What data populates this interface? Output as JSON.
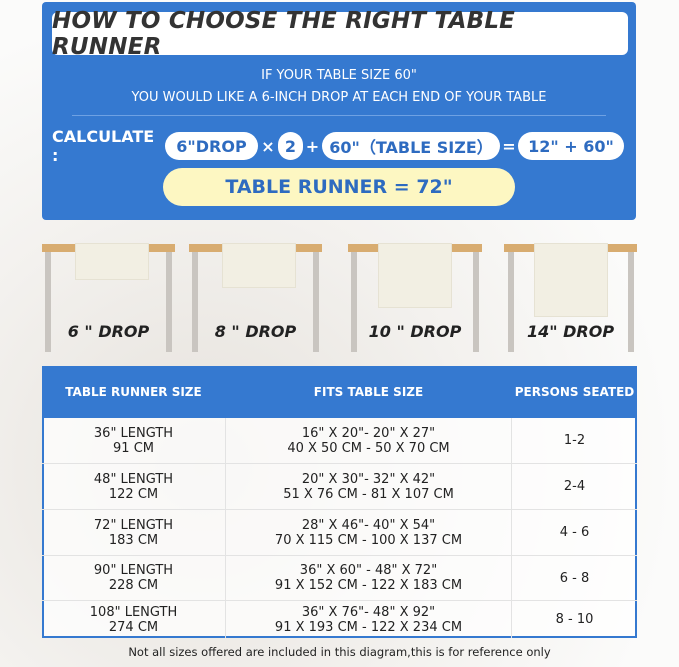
{
  "header": {
    "title": "HOW TO CHOOSE THE RIGHT TABLE RUNNER",
    "line1": "IF YOUR TABLE SIZE 60\"",
    "line2": "YOU WOULD LIKE A 6-INCH DROP AT EACH END OF YOUR TABLE"
  },
  "calc": {
    "label": "CALCULATE :",
    "drop": "6\"DROP",
    "times": "×",
    "factor": "2",
    "plus": "+",
    "table": "60\"（TABLE SIZE）",
    "equals": "=",
    "sum": "12\" + 60\"",
    "result": "TABLE RUNNER = 72\""
  },
  "drops": [
    "6 \" DROP",
    "8 \" DROP",
    "10 \" DROP",
    "14\" DROP"
  ],
  "table": {
    "headers": [
      "TABLE RUNNER SIZE",
      "FITS TABLE SIZE",
      "PERSONS SEATED"
    ],
    "rows": [
      {
        "size": "36\" LENGTH",
        "cm": "91 CM",
        "fit_in": "16\" X 20\"- 20\" X 27\"",
        "fit_cm": "40 X 50 CM - 50 X 70 CM",
        "persons": "1-2"
      },
      {
        "size": "48\" LENGTH",
        "cm": "122 CM",
        "fit_in": "20\" X 30\"- 32\" X 42\"",
        "fit_cm": "51 X 76 CM - 81 X 107 CM",
        "persons": "2-4"
      },
      {
        "size": "72\" LENGTH",
        "cm": "183 CM",
        "fit_in": "28\" X 46\"- 40\" X 54\"",
        "fit_cm": "70 X 115 CM - 100 X 137 CM",
        "persons": "4 - 6"
      },
      {
        "size": "90\" LENGTH",
        "cm": "228 CM",
        "fit_in": "36\" X 60\" - 48\" X 72\"",
        "fit_cm": "91 X 152 CM - 122 X 183 CM",
        "persons": "6 - 8"
      },
      {
        "size": "108\" LENGTH",
        "cm": "274 CM",
        "fit_in": "36\" X 76\"- 48\" X 92\"",
        "fit_cm": "91 X 193 CM - 122 X 234 CM",
        "persons": "8 - 10"
      }
    ]
  },
  "footer": "Not all sizes offered are included in this diagram,this is for reference only",
  "colors": {
    "blue": "#3579d0",
    "yellow": "#fdf7c2",
    "wood": "#d8ac70"
  }
}
